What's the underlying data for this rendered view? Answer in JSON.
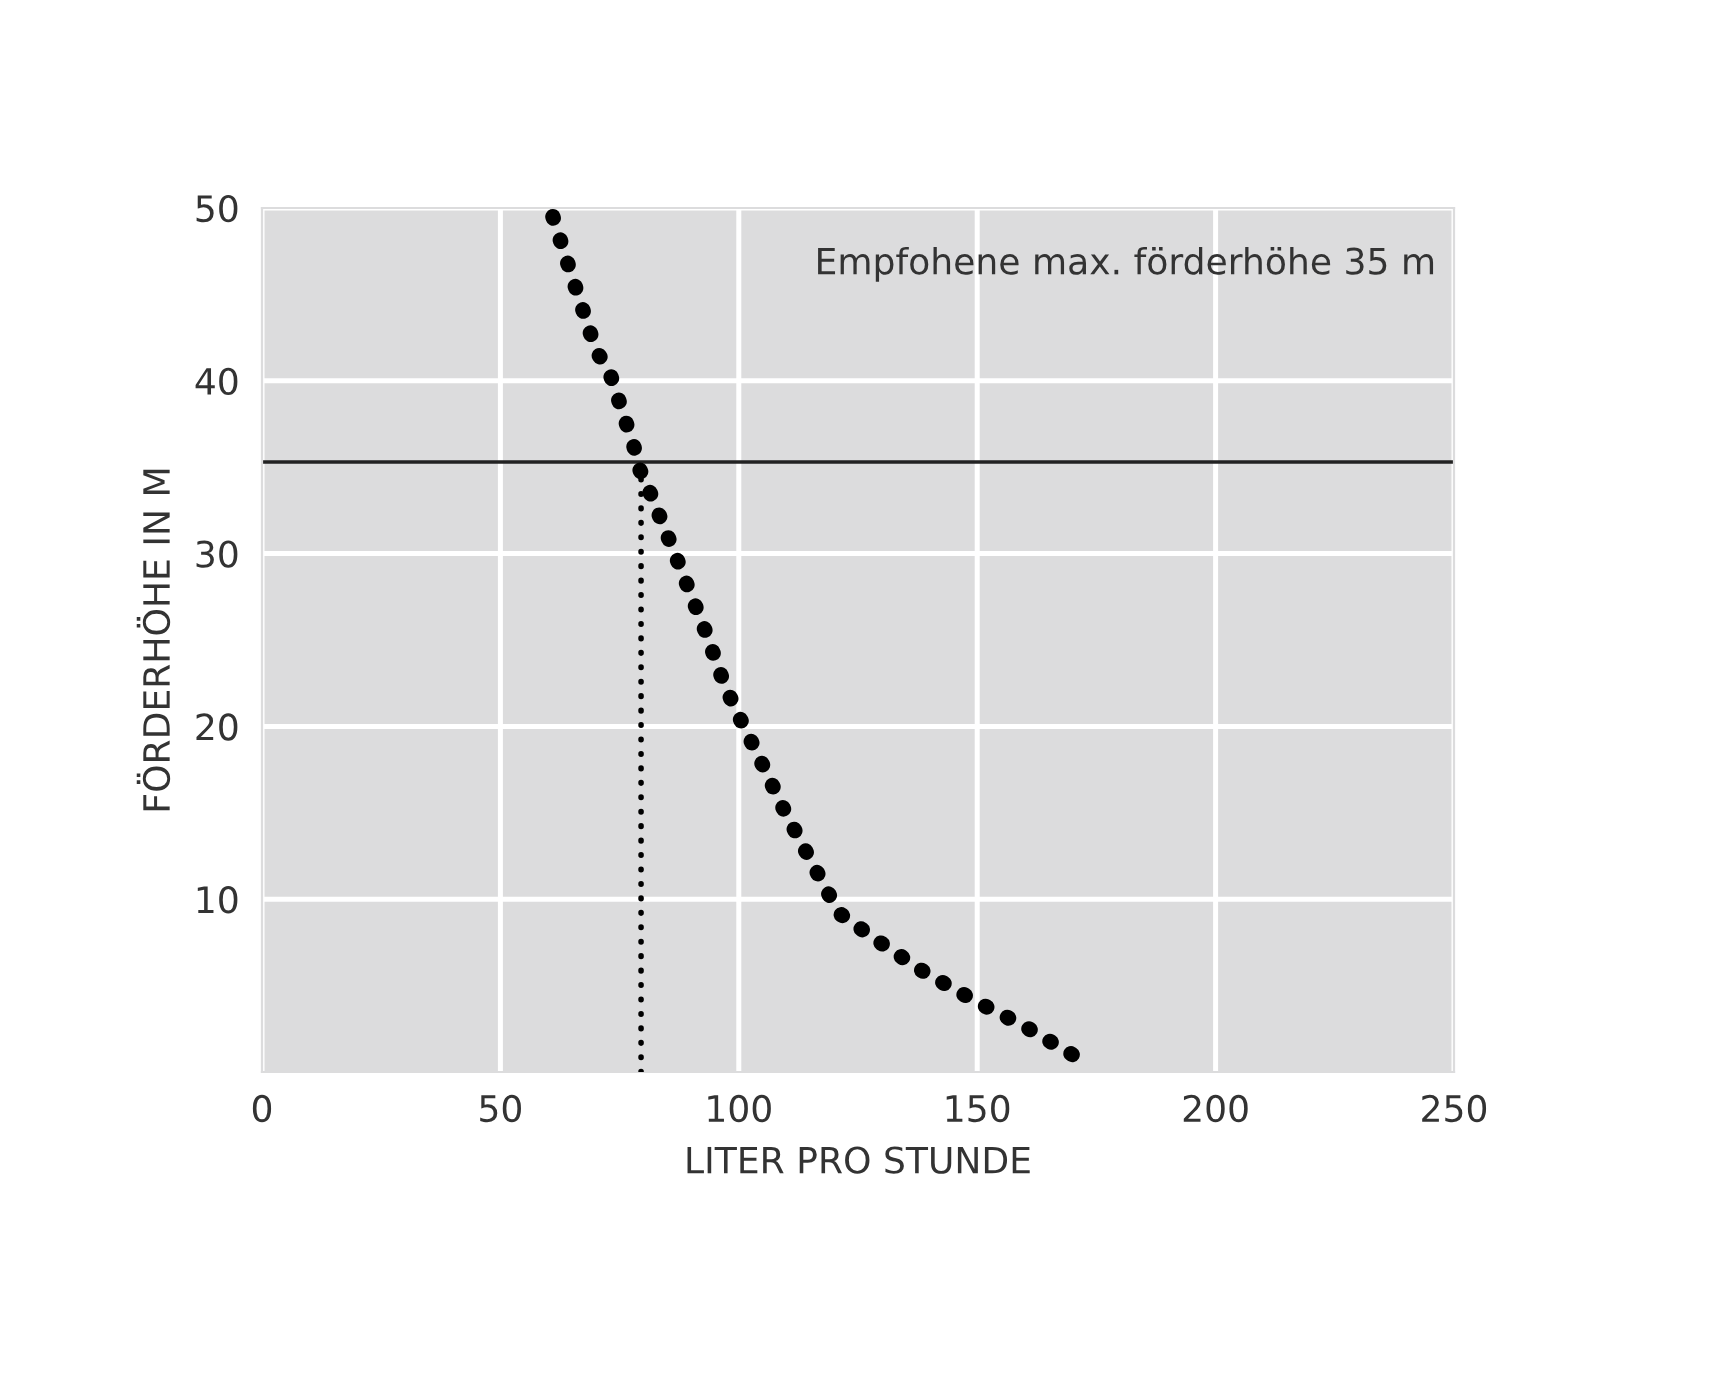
{
  "chart_data": {
    "type": "line",
    "xlabel": "LITER PRO STUNDE",
    "ylabel": "FÖRDERHÖHE IN M",
    "xlim": [
      0,
      250
    ],
    "ylim": [
      0,
      50
    ],
    "xticks": [
      0,
      50,
      100,
      150,
      200,
      250
    ],
    "yticks": [
      10,
      20,
      30,
      40,
      50
    ],
    "grid": true,
    "line_style": "dotted",
    "marker": "none",
    "series": [
      {
        "color": "#000000",
        "x": [
          61,
          64,
          70,
          73,
          78,
          79,
          81,
          87,
          93,
          97,
          100,
          104.6,
          109.6,
          114,
          121,
          129.6,
          138.8,
          149.6,
          159.6,
          170,
          173.8
        ],
        "values": [
          49.5,
          46.9,
          41.8,
          40.4,
          36.2,
          35,
          33.8,
          29.7,
          25.5,
          22.4,
          20.6,
          18,
          15.1,
          12.8,
          9.2,
          7.5,
          5.8,
          4.1,
          2.7,
          1,
          0.4
        ]
      },
      {
        "color": "#000000",
        "x": [
          79.5,
          79.5
        ],
        "values": [
          0,
          35
        ]
      }
    ],
    "ref_lines": [
      {
        "axis": "y",
        "value": 35.3,
        "color": "#222222",
        "line_style": "solid"
      }
    ],
    "annotations": [
      "Empfohene max. förderhöhe 35 m"
    ]
  }
}
